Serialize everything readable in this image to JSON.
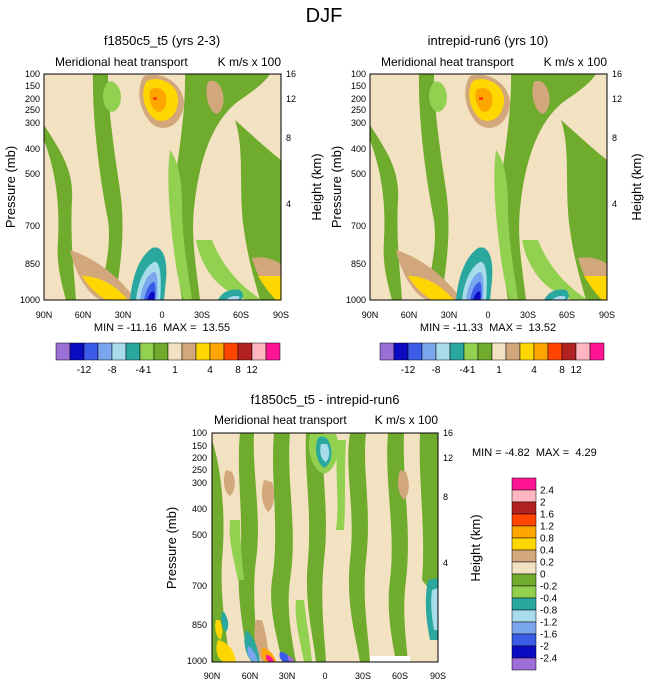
{
  "figure_title": "DJF",
  "colors": {
    "palette_main": [
      "#9b6fd6",
      "#0b0bc4",
      "#3a5ce8",
      "#7aa6ee",
      "#a9dcea",
      "#2aa8a0",
      "#92d050",
      "#6fac2e",
      "#f3e2c1",
      "#d2a77c",
      "#ffd700",
      "#ffa500",
      "#ff4500",
      "#b22222",
      "#ffb6c1",
      "#ff1493"
    ],
    "palette_diff": [
      "#9b6fd6",
      "#0b0bc4",
      "#3a5ce8",
      "#7aa6ee",
      "#a9dcea",
      "#2aa8a0",
      "#92d050",
      "#6fac2e",
      "#f3e2c1",
      "#d2a77c",
      "#ffd700",
      "#ffa500",
      "#ff4500",
      "#b22222",
      "#ffb6c1",
      "#ff1493"
    ]
  },
  "chart_data": [
    {
      "type": "heatmap",
      "title": "f1850c5_t5 (yrs 2-3)",
      "subtitle_left": "Meridional heat transport",
      "subtitle_right": "K m/s x 100",
      "xlabel": "",
      "ylabel": "Pressure (mb)",
      "ylabel_right": "Height (km)",
      "x_ticks": [
        "90N",
        "60N",
        "30N",
        "0",
        "30S",
        "60S",
        "90S"
      ],
      "y_ticks": [
        "100",
        "150",
        "200",
        "250",
        "300",
        "400",
        "500",
        "700",
        "850",
        "1000"
      ],
      "y_ticks_right": [
        "16",
        "12",
        "8",
        "4"
      ],
      "stats": "MIN = -11.16  MAX =  13.55",
      "levels": [
        "-12",
        "-8",
        "-4",
        "-1",
        "1",
        "4",
        "8",
        "12"
      ],
      "features": [
        {
          "lat": -10,
          "p": 200,
          "value": 13.55
        },
        {
          "lat": 25,
          "p": 980,
          "value": -11.16
        },
        {
          "lat": 45,
          "p": 920,
          "value": 4
        },
        {
          "lat": 30,
          "p": 960,
          "value": -8
        },
        {
          "lat": 65,
          "p": 930,
          "value": 4
        },
        {
          "lat": -55,
          "p": 970,
          "value": -4
        },
        {
          "lat": -85,
          "p": 960,
          "value": 4
        },
        {
          "lat": 45,
          "p": 180,
          "value": -1
        },
        {
          "lat": -50,
          "p": 200,
          "value": 1
        }
      ]
    },
    {
      "type": "heatmap",
      "title": "intrepid-run6 (yrs 10)",
      "subtitle_left": "Meridional heat transport",
      "subtitle_right": "K m/s x 100",
      "xlabel": "",
      "ylabel": "Pressure (mb)",
      "ylabel_right": "Height (km)",
      "x_ticks": [
        "90N",
        "60N",
        "30N",
        "0",
        "30S",
        "60S",
        "90S"
      ],
      "y_ticks": [
        "100",
        "150",
        "200",
        "250",
        "300",
        "400",
        "500",
        "700",
        "850",
        "1000"
      ],
      "y_ticks_right": [
        "16",
        "12",
        "8",
        "4"
      ],
      "stats": "MIN = -11.33  MAX =  13.52",
      "levels": [
        "-12",
        "-8",
        "-4",
        "-1",
        "1",
        "4",
        "8",
        "12"
      ],
      "features": [
        {
          "lat": -10,
          "p": 200,
          "value": 13.52
        },
        {
          "lat": 25,
          "p": 980,
          "value": -11.33
        },
        {
          "lat": 45,
          "p": 920,
          "value": 4
        },
        {
          "lat": 30,
          "p": 960,
          "value": -8
        },
        {
          "lat": 65,
          "p": 930,
          "value": 4
        },
        {
          "lat": -55,
          "p": 970,
          "value": -4
        },
        {
          "lat": -85,
          "p": 960,
          "value": 4
        },
        {
          "lat": 45,
          "p": 180,
          "value": -1
        },
        {
          "lat": -50,
          "p": 200,
          "value": 1
        }
      ]
    },
    {
      "type": "heatmap",
      "title": "f1850c5_t5 - intrepid-run6",
      "subtitle_left": "Meridional heat transport",
      "subtitle_right": "K m/s x 100",
      "xlabel": "",
      "ylabel": "Pressure (mb)",
      "ylabel_right": "Height (km)",
      "x_ticks": [
        "90N",
        "60N",
        "30N",
        "0",
        "30S",
        "60S",
        "90S"
      ],
      "y_ticks": [
        "100",
        "150",
        "200",
        "250",
        "300",
        "400",
        "500",
        "700",
        "850",
        "1000"
      ],
      "y_ticks_right": [
        "16",
        "12",
        "8",
        "4"
      ],
      "stats": "MIN = -4.82  MAX =  4.29",
      "levels": [
        "2.4",
        "2",
        "1.6",
        "1.2",
        "0.8",
        "0.4",
        "0.2",
        "0",
        "-0.2",
        "-0.4",
        "-0.8",
        "-1.2",
        "-1.6",
        "-2",
        "-2.4"
      ],
      "features": [
        {
          "lat": -5,
          "p": 190,
          "value": -0.8
        },
        {
          "lat": 45,
          "p": 950,
          "value": 2.4
        },
        {
          "lat": 15,
          "p": 990,
          "value": -2.4
        },
        {
          "lat": 60,
          "p": 960,
          "value": -1.2
        },
        {
          "lat": -85,
          "p": 880,
          "value": -1.2
        },
        {
          "lat": 50,
          "p": 400,
          "value": 0.2
        },
        {
          "lat": -40,
          "p": 420,
          "value": 0.2
        }
      ]
    }
  ]
}
